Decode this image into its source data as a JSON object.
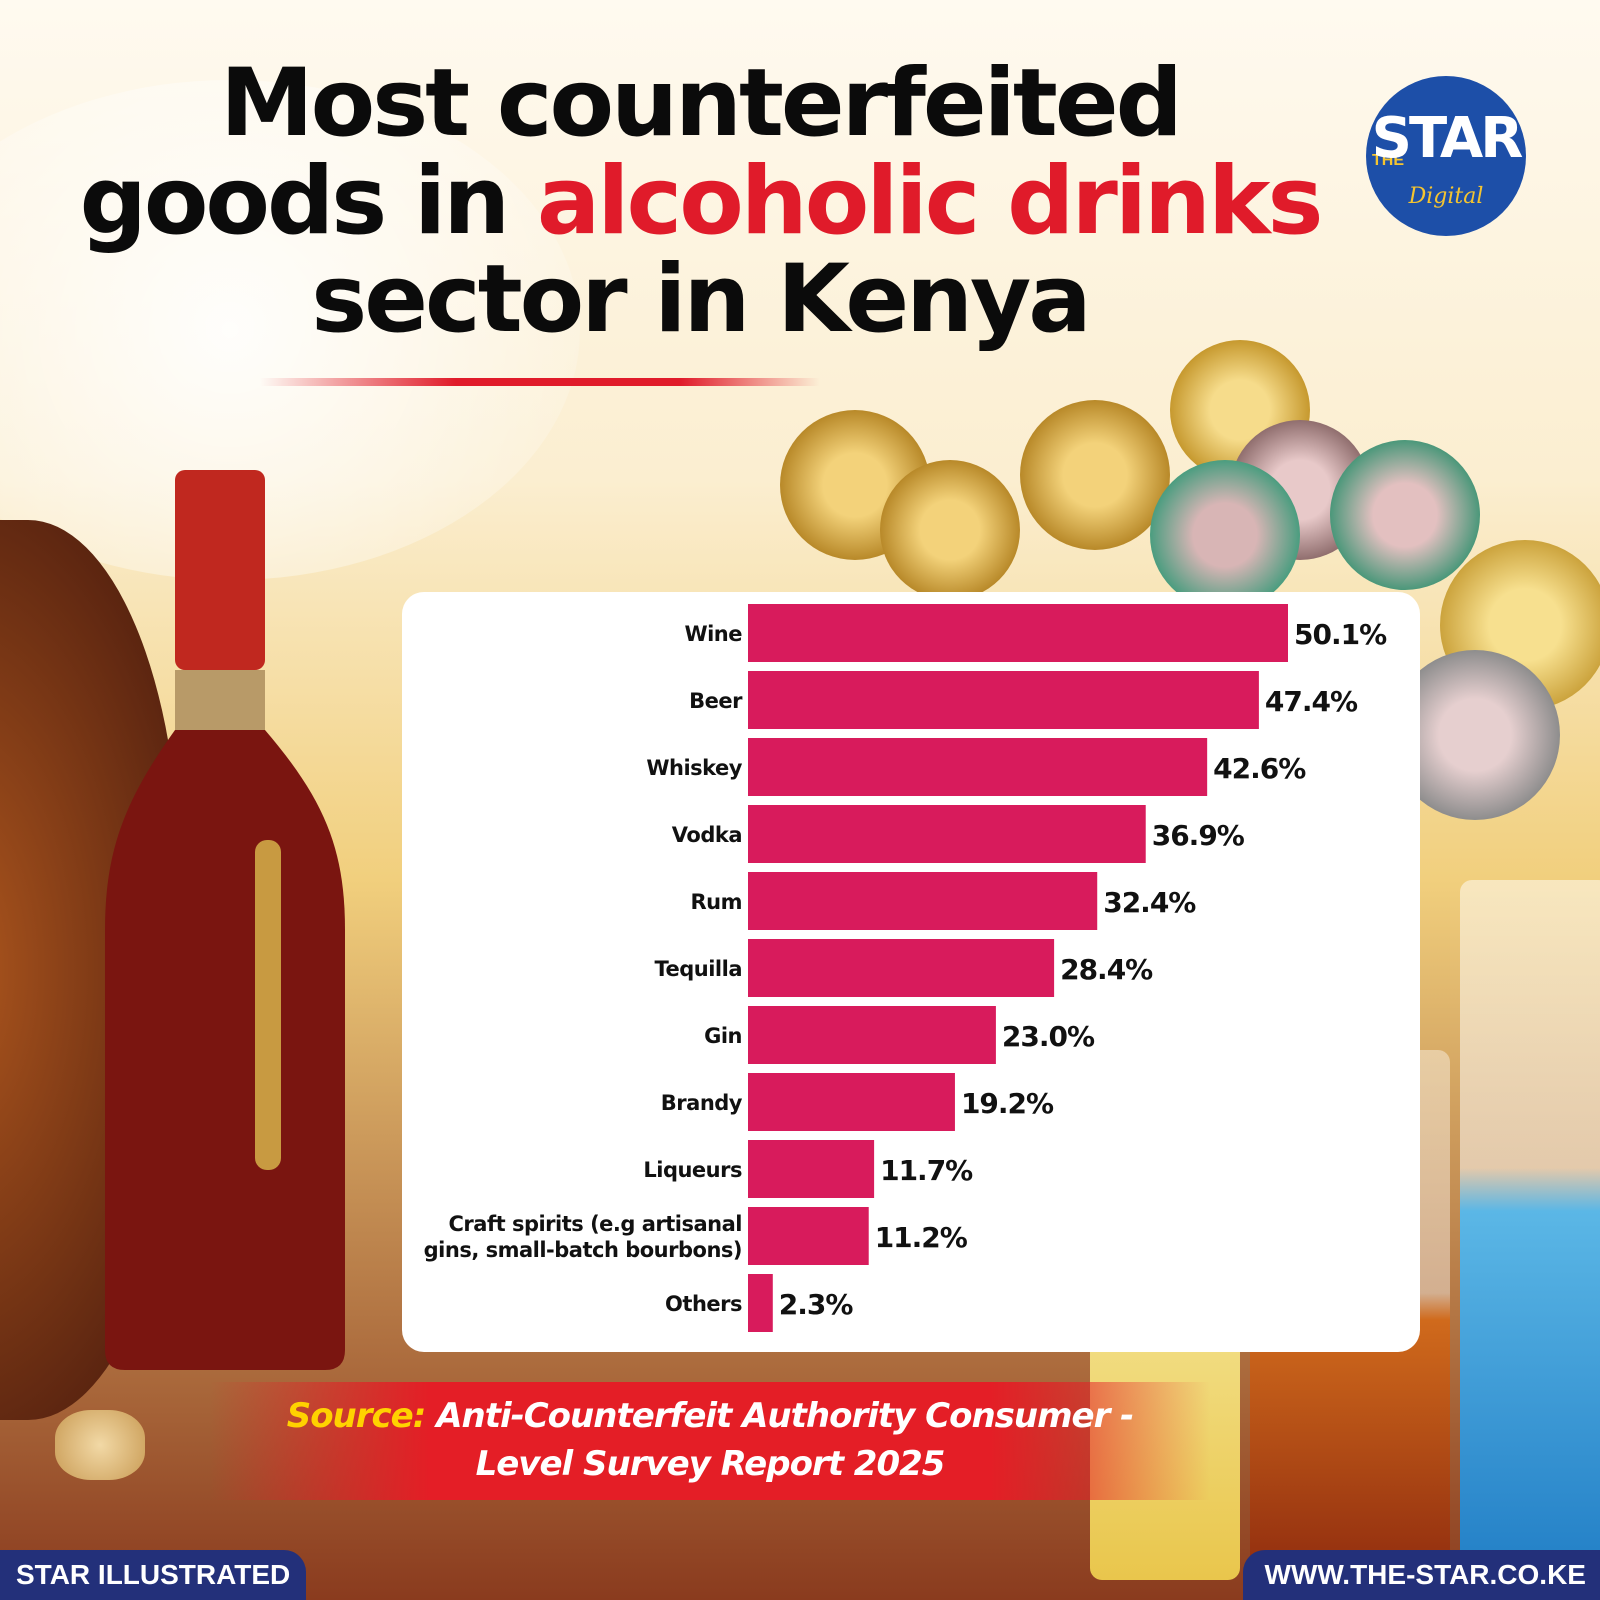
{
  "title": {
    "line1": "Most counterfeited",
    "line2_prefix": "goods in ",
    "line2_highlight": "alcoholic drinks",
    "line3": "sector in Kenya"
  },
  "logo": {
    "the": "THE",
    "star": "STAR",
    "digital": "Digital"
  },
  "chart_data": {
    "type": "bar",
    "orientation": "horizontal",
    "categories": [
      "Wine",
      "Beer",
      "Whiskey",
      "Vodka",
      "Rum",
      "Tequilla",
      "Gin",
      "Brandy",
      "Liqueurs",
      "Craft spirits (e.g artisanal gins, small-batch bourbons)",
      "Others"
    ],
    "category_lines": [
      [
        "Wine"
      ],
      [
        "Beer"
      ],
      [
        "Whiskey"
      ],
      [
        "Vodka"
      ],
      [
        "Rum"
      ],
      [
        "Tequilla"
      ],
      [
        "Gin"
      ],
      [
        "Brandy"
      ],
      [
        "Liqueurs"
      ],
      [
        "Craft spirits (e.g artisanal",
        "gins, small-batch bourbons)"
      ],
      [
        "Others"
      ]
    ],
    "values": [
      50.1,
      47.4,
      42.6,
      36.9,
      32.4,
      28.4,
      23.0,
      19.2,
      11.7,
      11.2,
      2.3
    ],
    "value_labels": [
      "50.1%",
      "47.4%",
      "42.6%",
      "36.9%",
      "32.4%",
      "28.4%",
      "23.0%",
      "19.2%",
      "11.7%",
      "11.2%",
      "2.3%"
    ],
    "xlim": [
      0,
      50.1
    ],
    "bar_color": "#d81b5c",
    "grid": false,
    "legend": "none"
  },
  "source": {
    "label": "Source:",
    "text": "Anti-Counterfeit Authority Consumer - Level Survey Report 2025"
  },
  "footer": {
    "left": "STAR ILLUSTRATED",
    "right": "WWW.THE-STAR.CO.KE"
  },
  "colors": {
    "accent_red": "#e01b2a",
    "bar": "#d81b5c",
    "footer_blue": "#23307a",
    "source_yellow": "#ffd200"
  }
}
